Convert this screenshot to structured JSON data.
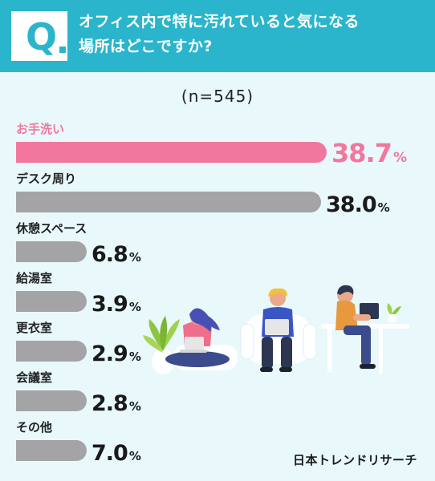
{
  "header": {
    "q_mark": "Q",
    "question_line1": "オフィス内で特に汚れていると気になる",
    "question_line2": "場所はどこですか?"
  },
  "sample_label": "(n=545)",
  "credit": "日本トレンドリサーチ",
  "colors": {
    "header_bg": "#2bb5cc",
    "highlight_bar": "#f2779f",
    "bar": "#a4a4a6",
    "highlight_value": "#f2779f",
    "value": "#1a1a1a"
  },
  "chart_data": {
    "type": "bar",
    "orientation": "horizontal",
    "categories": [
      "お手洗い",
      "デスク周り",
      "休憩スペース",
      "給湯室",
      "更衣室",
      "会議室",
      "その他"
    ],
    "values": [
      38.7,
      38.0,
      6.8,
      3.9,
      2.9,
      2.8,
      7.0
    ],
    "value_labels": [
      "38.7",
      "38.0",
      "6.8",
      "3.9",
      "2.9",
      "2.8",
      "7.0"
    ],
    "unit": "%",
    "highlight_index": 0,
    "xlim": [
      0,
      40
    ]
  }
}
